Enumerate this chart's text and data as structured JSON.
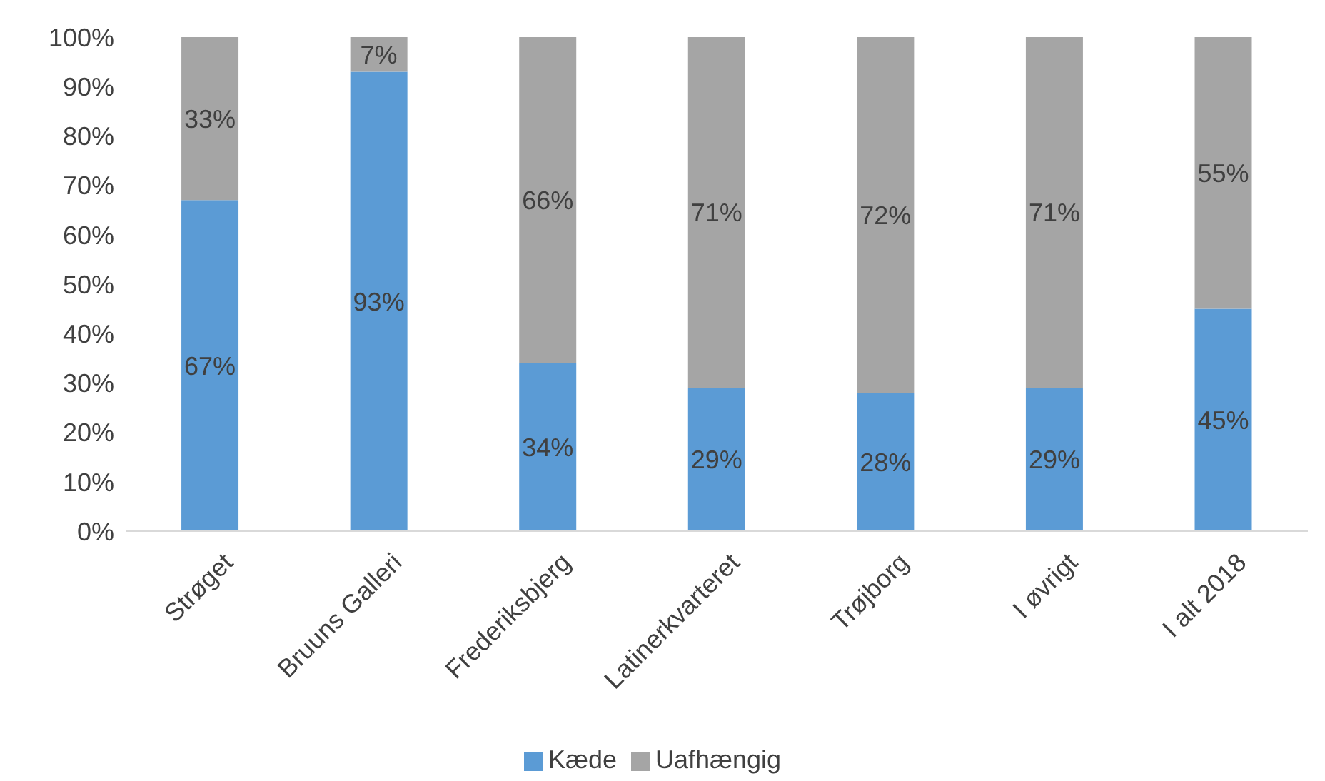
{
  "chart_data": {
    "type": "bar",
    "stacked": true,
    "categories": [
      "Strøget",
      "Bruuns Galleri",
      "Frederiksbjerg",
      "Latinerkvarteret",
      "Trøjborg",
      "I øvrigt",
      "I alt 2018"
    ],
    "series": [
      {
        "name": "Kæde",
        "color": "#5b9bd5",
        "values": [
          67,
          93,
          34,
          29,
          28,
          29,
          45
        ],
        "value_labels": [
          "67%",
          "93%",
          "34%",
          "29%",
          "28%",
          "29%",
          "45%"
        ]
      },
      {
        "name": "Uafhængig",
        "color": "#a5a5a5",
        "values": [
          33,
          7,
          66,
          71,
          72,
          71,
          55
        ],
        "value_labels": [
          "33%",
          "7%",
          "66%",
          "71%",
          "72%",
          "71%",
          "55%"
        ]
      }
    ],
    "ylim": [
      0,
      100
    ],
    "yticks": [
      {
        "value": 0,
        "label": "0%"
      },
      {
        "value": 10,
        "label": "10%"
      },
      {
        "value": 20,
        "label": "20%"
      },
      {
        "value": 30,
        "label": "30%"
      },
      {
        "value": 40,
        "label": "40%"
      },
      {
        "value": 50,
        "label": "50%"
      },
      {
        "value": 60,
        "label": "60%"
      },
      {
        "value": 70,
        "label": "70%"
      },
      {
        "value": 80,
        "label": "80%"
      },
      {
        "value": 90,
        "label": "90%"
      },
      {
        "value": 100,
        "label": "100%"
      }
    ],
    "grid": false,
    "legend": "bottom"
  }
}
